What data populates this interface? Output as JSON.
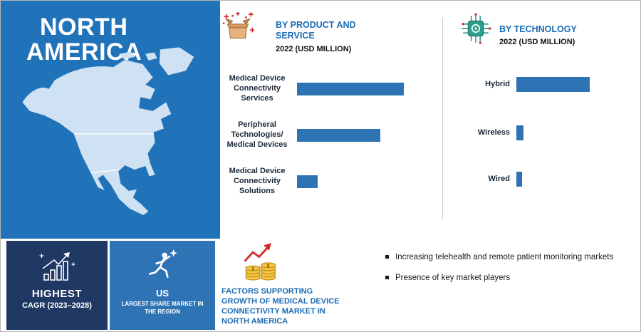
{
  "region": {
    "title_line1": "NORTH",
    "title_line2": "AMERICA"
  },
  "chart_data": [
    {
      "type": "bar",
      "orientation": "horizontal",
      "title": "BY PRODUCT AND SERVICE",
      "title_lines": [
        "BY PRODUCT AND",
        "SERVICE"
      ],
      "subtitle": "2022 (USD MILLION)",
      "categories": [
        "Medical Device Connectivity Services",
        "Peripheral Technologies/ Medical Devices",
        "Medical Device Connectivity Solutions"
      ],
      "values": [
        100,
        78,
        19
      ],
      "value_note": "Relative bar lengths estimated from pixels; no numeric axis shown",
      "bar_color": "#2e74b5",
      "grid": false,
      "legend_position": "none"
    },
    {
      "type": "bar",
      "orientation": "horizontal",
      "title": "BY TECHNOLOGY",
      "title_lines": [
        "BY TECHNOLOGY"
      ],
      "subtitle": "2022 (USD MILLION)",
      "categories": [
        "Hybrid",
        "Wireless",
        "Wired"
      ],
      "values": [
        100,
        10,
        8
      ],
      "value_note": "Relative bar lengths estimated from pixels; no numeric axis shown",
      "bar_color": "#2e74b5",
      "grid": false,
      "legend_position": "none"
    }
  ],
  "highlights": {
    "cagr": {
      "title": "HIGHEST",
      "subtitle": "CAGR (2023–2028)",
      "icon": "growth-chart-icon",
      "bg_color": "#1f3864"
    },
    "us": {
      "title": "US",
      "subtitle": "LARGEST SHARE MARKET IN THE REGION",
      "icon": "runner-icon",
      "bg_color": "#2e74b5"
    }
  },
  "factors": {
    "icon": "coins-growth-icon",
    "title_lines": [
      "FACTORS SUPPORTING",
      "GROWTH OF MEDICAL DEVICE",
      "CONNECTIVITY MARKET IN",
      "NORTH AMERICA"
    ],
    "bullets": [
      "Increasing telehealth and remote patient monitoring markets",
      "Presence of key market players"
    ]
  },
  "colors": {
    "panel_blue": "#2173b9",
    "bar_blue": "#2e74b5",
    "dark_navy": "#1f3864",
    "heading_blue": "#1a6bb5",
    "map_fill": "#cfe2f4"
  },
  "icons": {
    "product": "open-box-icon",
    "technology": "microchip-icon",
    "cagr": "growth-chart-icon",
    "us": "runner-icon",
    "factors": "coins-growth-icon"
  }
}
